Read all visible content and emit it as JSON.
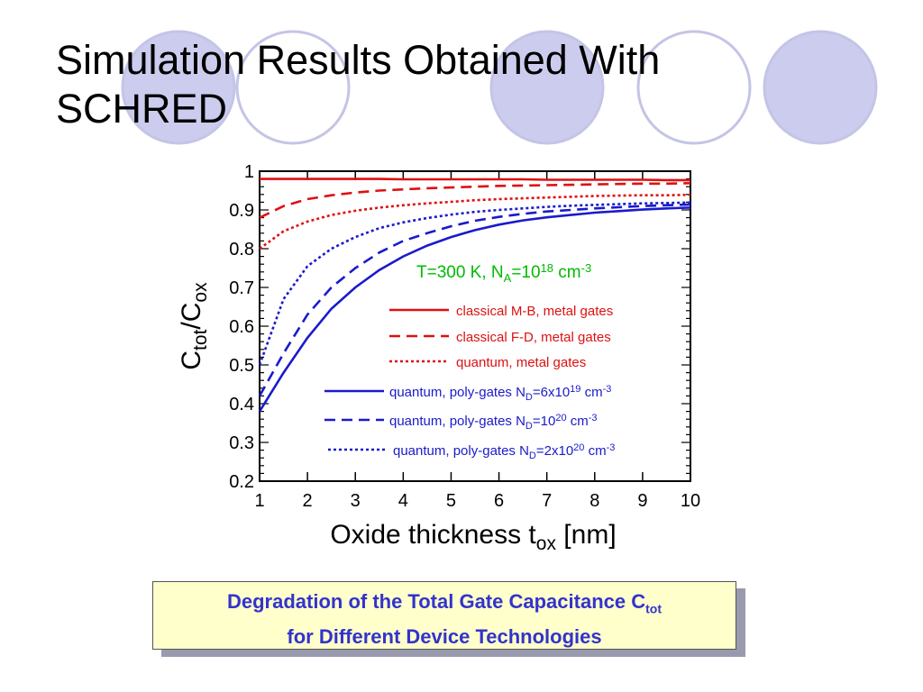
{
  "slide": {
    "title_line1": "Simulation Results Obtained With",
    "title_line2": "SCHRED",
    "decor_circle_fill": "#ccccee",
    "decor_circle_stroke": "#c4c4e6"
  },
  "caption": {
    "line1_text": "Degradation of the Total Gate Capacitance C",
    "line1_sub": "tot",
    "line2": "for Different Device Technologies",
    "text_color": "#3333cc",
    "background": "#ffffcc"
  },
  "chart_data": {
    "type": "line",
    "xlim": [
      1,
      10
    ],
    "ylim": [
      0.2,
      1.0
    ],
    "xticks": [
      1,
      2,
      3,
      4,
      5,
      6,
      7,
      8,
      9,
      10
    ],
    "xtick_labels": [
      "1",
      "2",
      "3",
      "4",
      "5",
      "6",
      "7",
      "8",
      "9",
      "10"
    ],
    "yticks": [
      0.2,
      0.3,
      0.4,
      0.5,
      0.6,
      0.7,
      0.8,
      0.9,
      1.0
    ],
    "ytick_labels": [
      "0.2",
      "0.3",
      "0.4",
      "0.5",
      "0.6",
      "0.7",
      "0.8",
      "0.9",
      "1"
    ],
    "xlabel": {
      "main": "Oxide thickness t",
      "sub": "ox",
      "suffix": " [nm]"
    },
    "ylabel": {
      "c1": "C",
      "sub1": "tot",
      "slash": "/C",
      "sub2": "ox"
    },
    "grid": false,
    "legend_position": "right",
    "annotation": {
      "text": "T=300 K, N",
      "sub": "A",
      "mid": "=10",
      "sup": "18",
      "unit": " cm",
      "unit_sup": "-3",
      "color": "#00bb00"
    },
    "x": [
      1,
      1.5,
      2,
      2.5,
      3,
      3.5,
      4,
      4.5,
      5,
      5.5,
      6,
      6.5,
      7,
      7.5,
      8,
      8.5,
      9,
      9.5,
      10
    ],
    "series": [
      {
        "label": "classical M-B, metal gates",
        "label_sub": "",
        "label_mid": "",
        "label_sup": "",
        "label_unit": "",
        "label_unit_sup": "",
        "color": "#dd1111",
        "style": "solid",
        "values": [
          0.98,
          0.98,
          0.98,
          0.98,
          0.98,
          0.98,
          0.979,
          0.979,
          0.979,
          0.979,
          0.979,
          0.979,
          0.978,
          0.978,
          0.978,
          0.978,
          0.978,
          0.977,
          0.977
        ]
      },
      {
        "label": "classical F-D, metal gates",
        "label_sub": "",
        "label_mid": "",
        "label_sup": "",
        "label_unit": "",
        "label_unit_sup": "",
        "color": "#dd1111",
        "style": "dashed",
        "values": [
          0.88,
          0.91,
          0.928,
          0.938,
          0.945,
          0.95,
          0.953,
          0.956,
          0.958,
          0.96,
          0.962,
          0.963,
          0.964,
          0.965,
          0.966,
          0.967,
          0.968,
          0.968,
          0.969
        ]
      },
      {
        "label": "quantum, metal gates",
        "label_sub": "",
        "label_mid": "",
        "label_sup": "",
        "label_unit": "",
        "label_unit_sup": "",
        "color": "#dd1111",
        "style": "dotted",
        "values": [
          0.8,
          0.845,
          0.87,
          0.887,
          0.898,
          0.906,
          0.912,
          0.917,
          0.921,
          0.925,
          0.928,
          0.93,
          0.932,
          0.934,
          0.936,
          0.937,
          0.938,
          0.938,
          0.939
        ]
      },
      {
        "label": "quantum, poly-gates N",
        "label_sub": "D",
        "label_mid": "=6x10",
        "label_sup": "19",
        "label_unit": " cm",
        "label_unit_sup": "-3",
        "color": "#1a1acc",
        "style": "solid",
        "values": [
          0.38,
          0.48,
          0.57,
          0.645,
          0.7,
          0.745,
          0.78,
          0.808,
          0.83,
          0.848,
          0.862,
          0.873,
          0.881,
          0.887,
          0.893,
          0.897,
          0.901,
          0.904,
          0.906
        ]
      },
      {
        "label": "quantum, poly-gates N",
        "label_sub": "D",
        "label_mid": "=10",
        "label_sup": "20",
        "label_unit": " cm",
        "label_unit_sup": "-3",
        "color": "#1a1acc",
        "style": "dashed",
        "values": [
          0.42,
          0.53,
          0.63,
          0.7,
          0.75,
          0.79,
          0.82,
          0.84,
          0.858,
          0.872,
          0.882,
          0.89,
          0.896,
          0.9,
          0.904,
          0.907,
          0.91,
          0.912,
          0.914
        ]
      },
      {
        "label": "quantum, poly-gates N",
        "label_sub": "D",
        "label_mid": "=2x10",
        "label_sup": "20",
        "label_unit": " cm",
        "label_unit_sup": "-3",
        "color": "#1a1acc",
        "style": "dotted",
        "values": [
          0.5,
          0.67,
          0.755,
          0.8,
          0.83,
          0.853,
          0.868,
          0.879,
          0.888,
          0.895,
          0.9,
          0.904,
          0.908,
          0.911,
          0.913,
          0.915,
          0.917,
          0.918,
          0.919
        ]
      }
    ]
  }
}
